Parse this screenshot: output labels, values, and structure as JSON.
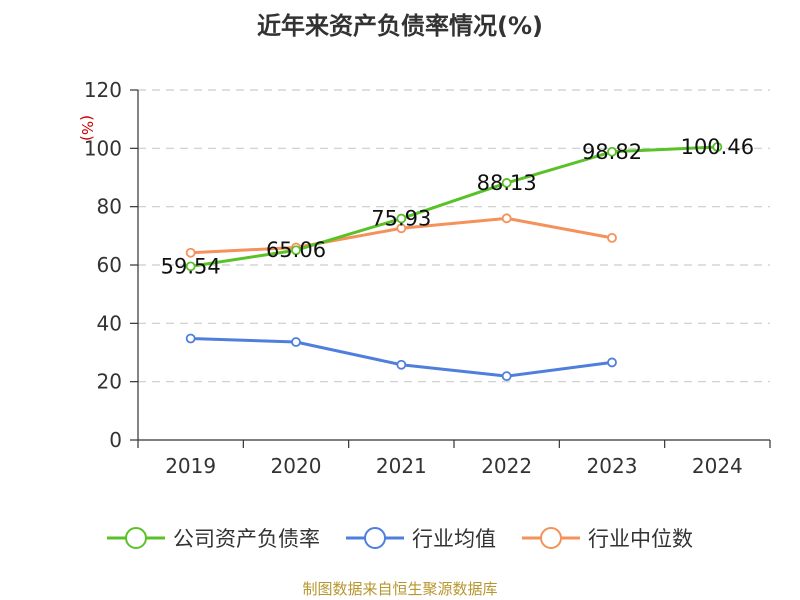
{
  "title": "近年来资产负债率情况(%)",
  "source": "制图数据来自恒生聚源数据库",
  "chart_data": {
    "type": "line",
    "title": "近年来资产负债率情况(%)",
    "ylabel": "(%)",
    "categories": [
      "2019",
      "2020",
      "2021",
      "2022",
      "2023",
      "2024"
    ],
    "ylim": [
      0,
      120
    ],
    "yticks": [
      0,
      20,
      40,
      60,
      80,
      100,
      120
    ],
    "grid": true,
    "legend_position": "bottom",
    "series": [
      {
        "name": "公司资产负债率",
        "color": "#5ac229",
        "values": [
          59.54,
          65.06,
          75.93,
          88.13,
          98.82,
          100.46
        ],
        "data_labels": [
          "59.54",
          "65.06",
          "75.93",
          "88.13",
          "98.82",
          "100.46"
        ]
      },
      {
        "name": "行业均值",
        "color": "#4f7fdc",
        "values": [
          34.8,
          33.6,
          25.8,
          21.9,
          26.6,
          null
        ]
      },
      {
        "name": "行业中位数",
        "color": "#f5915a",
        "values": [
          64.2,
          66.0,
          72.6,
          76.0,
          69.3,
          null
        ]
      }
    ]
  }
}
